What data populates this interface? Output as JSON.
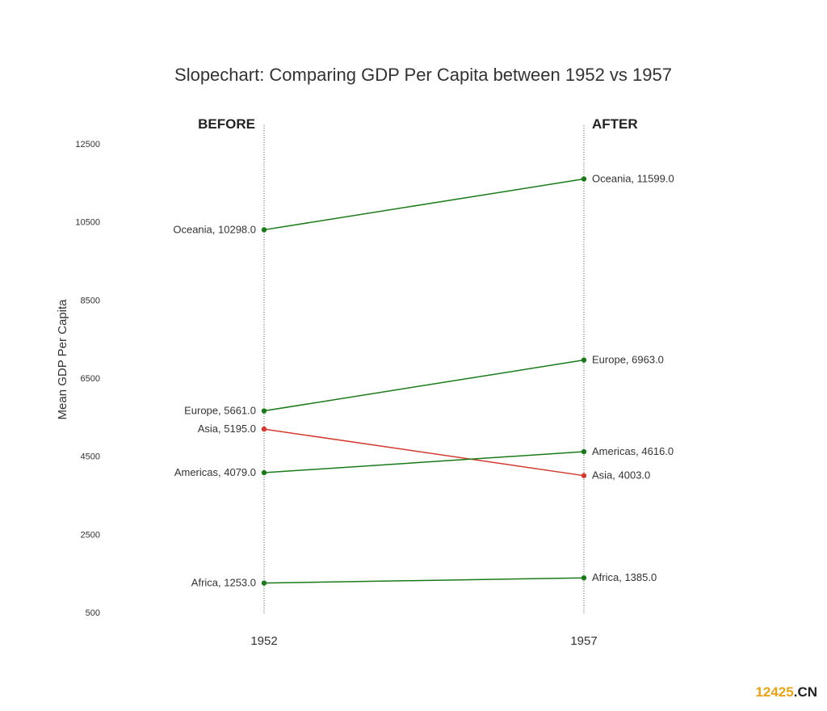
{
  "chart_data": {
    "type": "line",
    "title": "Slopechart: Comparing GDP Per Capita between 1952 vs 1957",
    "ylabel": "Mean GDP Per Capita",
    "xlabel": "",
    "x": [
      "1952",
      "1957"
    ],
    "headers": {
      "left": "BEFORE",
      "right": "AFTER"
    },
    "ylim": [
      500,
      12500
    ],
    "yticks": [
      "500",
      "2500",
      "4500",
      "6500",
      "8500",
      "10500",
      "12500"
    ],
    "grid": false,
    "series": [
      {
        "name": "Oceania",
        "values": [
          10298.0,
          11599.0
        ],
        "left_label": "Oceania, 10298.0",
        "right_label": "Oceania, 11599.0",
        "color": "#1a7a1a"
      },
      {
        "name": "Europe",
        "values": [
          5661.0,
          6963.0
        ],
        "left_label": "Europe, 5661.0",
        "right_label": "Europe, 6963.0",
        "color": "#1a7a1a"
      },
      {
        "name": "Asia",
        "values": [
          5195.0,
          4003.0
        ],
        "left_label": "Asia, 5195.0",
        "right_label": "Asia, 4003.0",
        "color": "#d43a2f"
      },
      {
        "name": "Americas",
        "values": [
          4079.0,
          4616.0
        ],
        "left_label": "Americas, 4079.0",
        "right_label": "Americas, 4616.0",
        "color": "#1a7a1a"
      },
      {
        "name": "Africa",
        "values": [
          1253.0,
          1385.0
        ],
        "left_label": "Africa, 1253.0",
        "right_label": "Africa, 1385.0",
        "color": "#1a7a1a"
      }
    ]
  },
  "watermark": {
    "number": "12425",
    "suffix": ".CN",
    "number_color": "#e8a317",
    "suffix_color": "#222222"
  }
}
